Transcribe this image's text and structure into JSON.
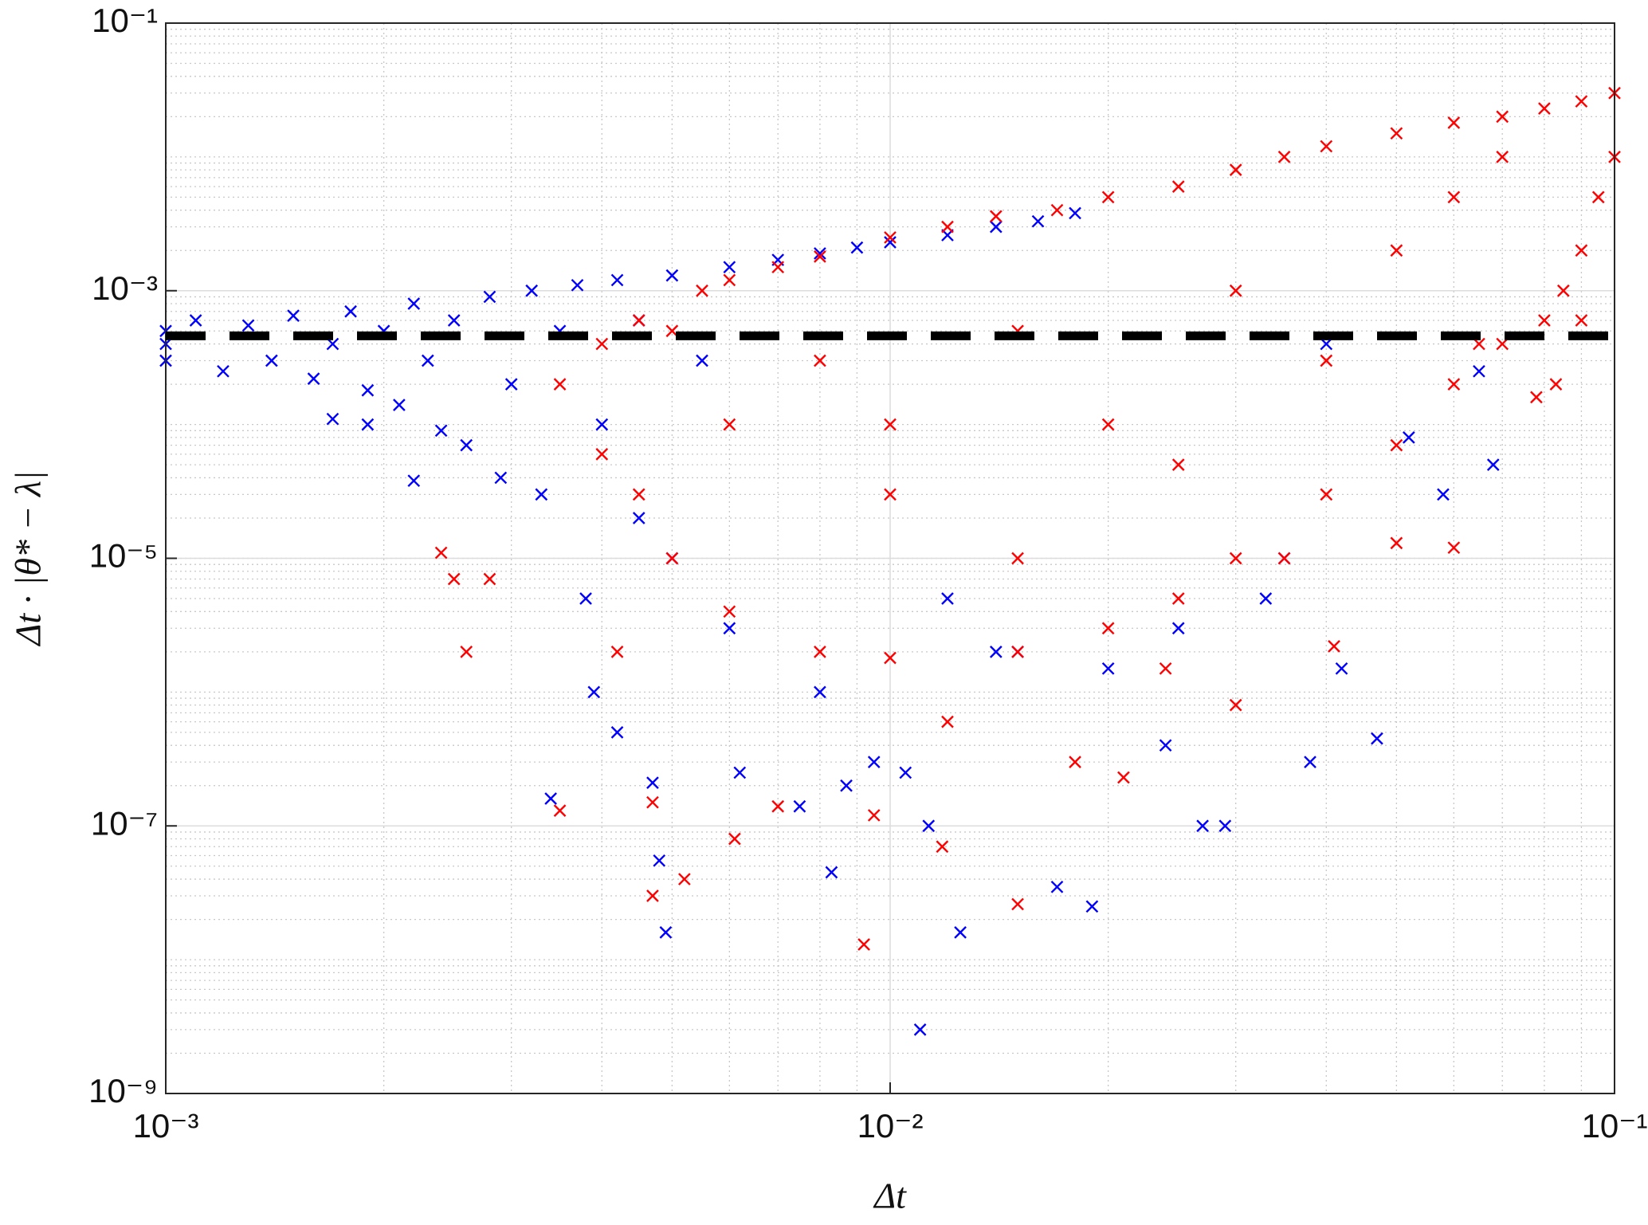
{
  "chart_data": {
    "type": "scatter",
    "x_label": "Δt",
    "y_label": "Δt · |θ* − λ|",
    "x_scale": "log",
    "y_scale": "log",
    "xlim": [
      0.001,
      0.1
    ],
    "ylim": [
      1e-09,
      0.1
    ],
    "xticks": [
      {
        "value": 0.001,
        "label": "10⁻³"
      },
      {
        "value": 0.01,
        "label": "10⁻²"
      },
      {
        "value": 0.1,
        "label": "10⁻¹"
      }
    ],
    "yticks": [
      {
        "value": 1e-09,
        "label": "10⁻⁹"
      },
      {
        "value": 1e-07,
        "label": "10⁻⁷"
      },
      {
        "value": 1e-05,
        "label": "10⁻⁵"
      },
      {
        "value": 0.001,
        "label": "10⁻³"
      },
      {
        "value": 0.1,
        "label": "10⁻¹"
      }
    ],
    "grid": true,
    "minor_grid": true,
    "marker": "x",
    "reference_line": {
      "value": 0.00046,
      "color": "#000000",
      "dashed": true
    },
    "series": [
      {
        "color": "#0000ff",
        "x": [
          0.001,
          0.001,
          0.001,
          0.0011,
          0.0012,
          0.0013,
          0.0014,
          0.0015,
          0.0016,
          0.0017,
          0.0018,
          0.0019,
          0.002,
          0.0021,
          0.0022,
          0.0023,
          0.0024,
          0.0025,
          0.0026,
          0.0028,
          0.0029,
          0.003,
          0.0032,
          0.0033,
          0.0035,
          0.0037,
          0.004,
          0.0042,
          0.0045,
          0.005,
          0.0055,
          0.006,
          0.007,
          0.008,
          0.009,
          0.01,
          0.012,
          0.014,
          0.016,
          0.018,
          0.0017,
          0.0019,
          0.0022,
          0.0034,
          0.0039,
          0.0042,
          0.0047,
          0.0048,
          0.0049,
          0.0062,
          0.0075,
          0.0083,
          0.0087,
          0.0095,
          0.0105,
          0.011,
          0.0113,
          0.0125,
          0.014,
          0.017,
          0.019,
          0.024,
          0.027,
          0.029,
          0.033,
          0.038,
          0.042,
          0.047,
          0.052,
          0.058,
          0.065,
          0.068,
          0.04,
          0.035,
          0.025,
          0.02,
          0.015,
          0.012,
          0.008,
          0.006,
          0.005,
          0.0045,
          0.0038
        ],
        "values": [
          0.0003,
          0.0005,
          0.0004,
          0.0006,
          0.00025,
          0.00055,
          0.0003,
          0.00065,
          0.00022,
          0.0004,
          0.0007,
          0.00018,
          0.0005,
          0.00014,
          0.0008,
          0.0003,
          9e-05,
          0.0006,
          7e-05,
          0.0009,
          4e-05,
          0.0002,
          0.001,
          3e-05,
          0.0005,
          0.0011,
          0.0001,
          0.0012,
          0.0006,
          0.0013,
          0.0003,
          0.0015,
          0.0017,
          0.0019,
          0.0021,
          0.0023,
          0.0026,
          0.003,
          0.0033,
          0.0038,
          0.00011,
          0.0001,
          3.8e-05,
          1.6e-07,
          1e-06,
          5e-07,
          2.1e-07,
          5.5e-08,
          1.6e-08,
          2.5e-07,
          1.4e-07,
          4.5e-08,
          2e-07,
          3e-07,
          2.5e-07,
          3e-09,
          1e-07,
          1.6e-08,
          2e-06,
          3.5e-08,
          2.5e-08,
          4e-07,
          1e-07,
          1e-07,
          5e-06,
          3e-07,
          1.5e-06,
          4.5e-07,
          8e-05,
          3e-05,
          0.00025,
          5e-05,
          0.0004,
          1e-05,
          3e-06,
          1.5e-06,
          2e-06,
          5e-06,
          1e-06,
          3e-06,
          1e-05,
          2e-05,
          5e-06
        ]
      },
      {
        "color": "#ff0000",
        "x": [
          0.0035,
          0.004,
          0.0045,
          0.005,
          0.0055,
          0.006,
          0.007,
          0.008,
          0.01,
          0.012,
          0.014,
          0.017,
          0.02,
          0.025,
          0.03,
          0.035,
          0.04,
          0.05,
          0.06,
          0.07,
          0.08,
          0.09,
          0.1,
          0.1,
          0.095,
          0.09,
          0.085,
          0.08,
          0.07,
          0.06,
          0.05,
          0.04,
          0.03,
          0.025,
          0.02,
          0.015,
          0.01,
          0.008,
          0.006,
          0.005,
          0.0045,
          0.004,
          0.006,
          0.008,
          0.01,
          0.015,
          0.02,
          0.03,
          0.04,
          0.05,
          0.06,
          0.07,
          0.015,
          0.01,
          0.025,
          0.0024,
          0.0025,
          0.0028,
          0.0026,
          0.0035,
          0.0042,
          0.0047,
          0.0047,
          0.0052,
          0.0061,
          0.007,
          0.0092,
          0.0095,
          0.0118,
          0.015,
          0.018,
          0.021,
          0.024,
          0.035,
          0.041,
          0.05,
          0.06,
          0.078,
          0.083,
          0.09,
          0.065,
          0.012,
          0.03
        ],
        "values": [
          0.0002,
          0.0004,
          0.0006,
          0.0005,
          0.001,
          0.0012,
          0.0015,
          0.0018,
          0.0025,
          0.003,
          0.0036,
          0.004,
          0.005,
          0.006,
          0.008,
          0.01,
          0.012,
          0.015,
          0.018,
          0.02,
          0.023,
          0.026,
          0.03,
          0.01,
          0.005,
          0.002,
          0.001,
          0.0006,
          0.0004,
          0.0002,
          7e-05,
          3e-05,
          1e-05,
          5e-06,
          3e-06,
          2e-06,
          1.8e-06,
          2e-06,
          4e-06,
          1e-05,
          3e-05,
          6e-05,
          0.0001,
          0.0003,
          0.0001,
          0.0005,
          0.0001,
          0.001,
          0.0003,
          0.002,
          0.005,
          0.01,
          1e-05,
          3e-05,
          5e-05,
          1.1e-05,
          7e-06,
          7e-06,
          2e-06,
          1.3e-07,
          2e-06,
          1.5e-07,
          3e-08,
          4e-08,
          8e-08,
          1.4e-07,
          1.3e-08,
          1.2e-07,
          7e-08,
          2.6e-08,
          3e-07,
          2.3e-07,
          1.5e-06,
          1e-05,
          2.2e-06,
          1.3e-05,
          1.2e-05,
          0.00016,
          0.0002,
          0.0006,
          0.0004,
          6e-07,
          8e-07
        ]
      }
    ]
  }
}
